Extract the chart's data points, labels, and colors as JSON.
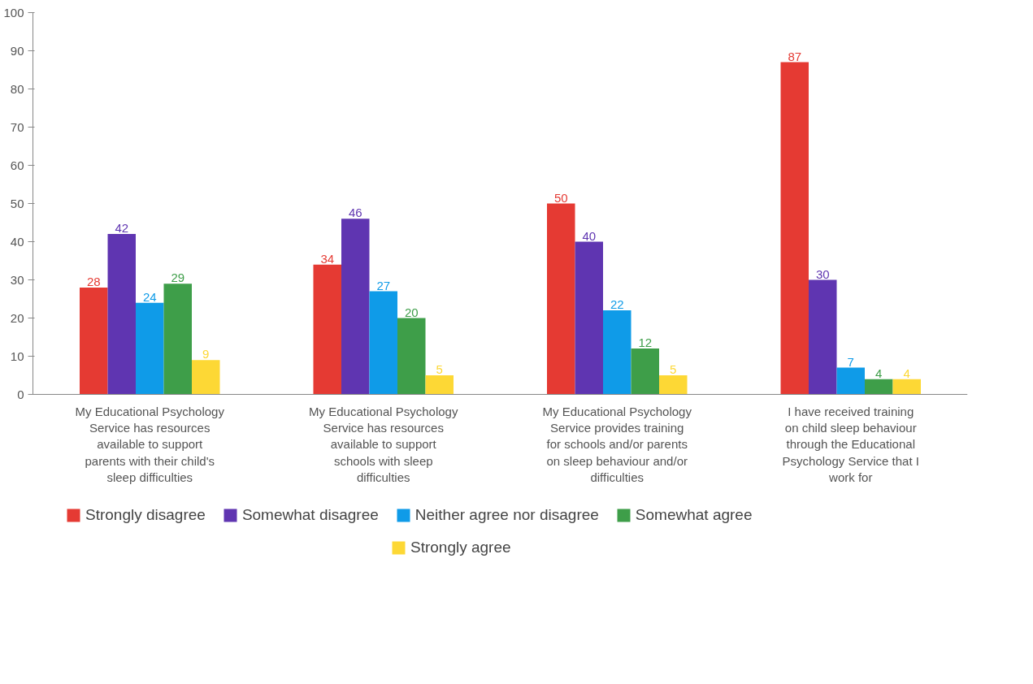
{
  "chart_data": {
    "type": "bar",
    "categories": [
      "My Educational Psychology Service has resources available to support parents with their child's sleep difficulties",
      "My Educational Psychology Service has resources available to support schools with sleep difficulties",
      "My Educational Psychology Service provides training for schools and/or parents on sleep behaviour and/or difficulties",
      "I have received training on child sleep behaviour through the Educational Psychology Service that I work for"
    ],
    "series": [
      {
        "name": "Strongly disagree",
        "color": "#e53a33",
        "values": [
          28,
          34,
          50,
          87
        ]
      },
      {
        "name": "Somewhat disagree",
        "color": "#5f35b1",
        "values": [
          42,
          46,
          40,
          30
        ]
      },
      {
        "name": "Neither agree nor disagree",
        "color": "#0f9be8",
        "values": [
          24,
          27,
          22,
          7
        ]
      },
      {
        "name": "Somewhat agree",
        "color": "#3e9e49",
        "values": [
          29,
          20,
          12,
          4
        ]
      },
      {
        "name": "Strongly agree",
        "color": "#fdd835",
        "values": [
          9,
          5,
          5,
          4
        ]
      }
    ],
    "ylim": [
      0,
      100
    ],
    "yticks": [
      0,
      10,
      20,
      30,
      40,
      50,
      60,
      70,
      80,
      90,
      100
    ],
    "grid": false,
    "legend": "bottom",
    "data_labels": true
  }
}
